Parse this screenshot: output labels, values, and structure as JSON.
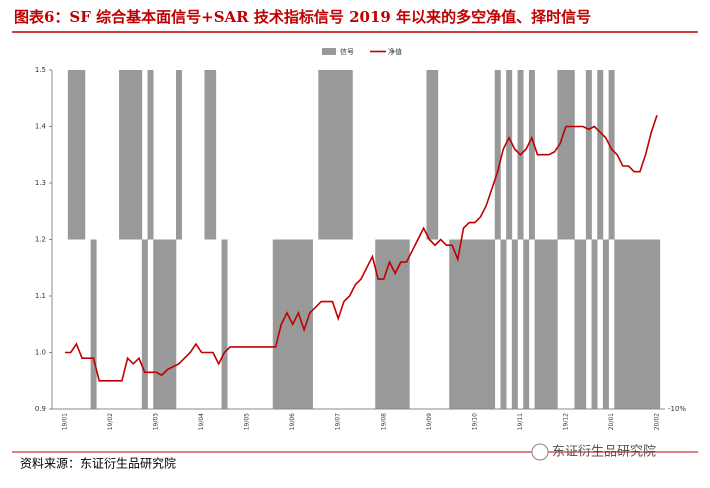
{
  "chart_data": {
    "type": "combo",
    "title": "图表6：SF 综合基本面信号+SAR 技术指标信号 2019 年以来的多空净值、择时信号",
    "source": "资料来源：东证衍生品研究院",
    "watermark": "东证衍生品研究院",
    "legend": "top",
    "categories": [
      "19/01",
      null,
      null,
      null,
      null,
      null,
      null,
      null,
      "19/02",
      null,
      null,
      null,
      null,
      null,
      null,
      null,
      "19/03",
      null,
      null,
      null,
      null,
      null,
      null,
      null,
      "19/04",
      null,
      null,
      null,
      null,
      null,
      null,
      null,
      "19/05",
      null,
      null,
      null,
      null,
      null,
      null,
      null,
      "19/06",
      null,
      null,
      null,
      null,
      null,
      null,
      null,
      "19/07",
      null,
      null,
      null,
      null,
      null,
      null,
      null,
      "19/08",
      null,
      null,
      null,
      null,
      null,
      null,
      null,
      "19/09",
      null,
      null,
      null,
      null,
      null,
      null,
      null,
      "19/10",
      null,
      null,
      null,
      null,
      null,
      null,
      null,
      "19/11",
      null,
      null,
      null,
      null,
      null,
      null,
      null,
      "19/12",
      null,
      null,
      null,
      null,
      null,
      null,
      null,
      "20/01",
      null,
      null,
      null,
      null,
      null,
      null,
      null,
      "20/02"
    ],
    "series": [
      {
        "name": "信号",
        "type": "bar",
        "axis": "y2",
        "color": "#999999",
        "values": [
          0,
          10,
          10,
          10,
          0,
          -10,
          0,
          0,
          0,
          0,
          10,
          10,
          10,
          10,
          -10,
          10,
          -10,
          -10,
          -10,
          -10,
          10,
          0,
          0,
          0,
          0,
          10,
          10,
          0,
          -10,
          0,
          0,
          0,
          0,
          0,
          0,
          0,
          0,
          -10,
          -10,
          -10,
          -10,
          -10,
          -10,
          -10,
          0,
          10,
          10,
          10,
          10,
          10,
          10,
          0,
          0,
          0,
          0,
          -10,
          -10,
          -10,
          -10,
          -10,
          -10,
          0,
          0,
          0,
          10,
          10,
          0,
          0,
          -10,
          -10,
          -10,
          -10,
          -10,
          -10,
          -10,
          -10,
          10,
          -10,
          10,
          -10,
          10,
          -10,
          10,
          -10,
          -10,
          -10,
          -10,
          10,
          10,
          10,
          -10,
          -10,
          10,
          -10,
          10,
          -10,
          10,
          -10,
          -10,
          -10,
          -10,
          -10,
          -10,
          -10,
          -10
        ]
      },
      {
        "name": "净值",
        "type": "line",
        "color": "#c00000",
        "values": [
          1.0,
          1.0,
          1.015,
          0.99,
          0.99,
          0.99,
          0.95,
          0.95,
          0.95,
          0.95,
          0.95,
          0.99,
          0.98,
          0.99,
          0.965,
          0.965,
          0.965,
          0.96,
          0.97,
          0.975,
          0.98,
          0.99,
          1.0,
          1.015,
          1.0,
          1.0,
          1.0,
          0.98,
          1.0,
          1.01,
          1.01,
          1.01,
          1.01,
          1.01,
          1.01,
          1.01,
          1.01,
          1.01,
          1.05,
          1.07,
          1.05,
          1.07,
          1.04,
          1.07,
          1.08,
          1.09,
          1.09,
          1.09,
          1.06,
          1.09,
          1.1,
          1.12,
          1.13,
          1.15,
          1.17,
          1.13,
          1.13,
          1.16,
          1.14,
          1.16,
          1.16,
          1.18,
          1.2,
          1.22,
          1.2,
          1.19,
          1.2,
          1.19,
          1.19,
          1.165,
          1.22,
          1.23,
          1.23,
          1.24,
          1.26,
          1.29,
          1.32,
          1.36,
          1.38,
          1.36,
          1.35,
          1.36,
          1.38,
          1.35,
          1.35,
          1.35,
          1.355,
          1.37,
          1.4,
          1.4,
          1.4,
          1.4,
          1.395,
          1.4,
          1.39,
          1.38,
          1.36,
          1.35,
          1.33,
          1.33,
          1.32,
          1.32,
          1.35,
          1.39,
          1.42
        ]
      }
    ],
    "ylim": [
      0.9,
      1.5
    ],
    "yticks": [
      0.9,
      {
        "value": 1.0,
        "label": "1.0"
      },
      1.1,
      {
        "value": 1.2,
        "label": "1.2"
      },
      1.3,
      1.4,
      1.5
    ],
    "y2lim": [
      -10,
      10
    ],
    "y2ticks": [
      {
        "value": -10,
        "label": "-10%"
      }
    ]
  }
}
